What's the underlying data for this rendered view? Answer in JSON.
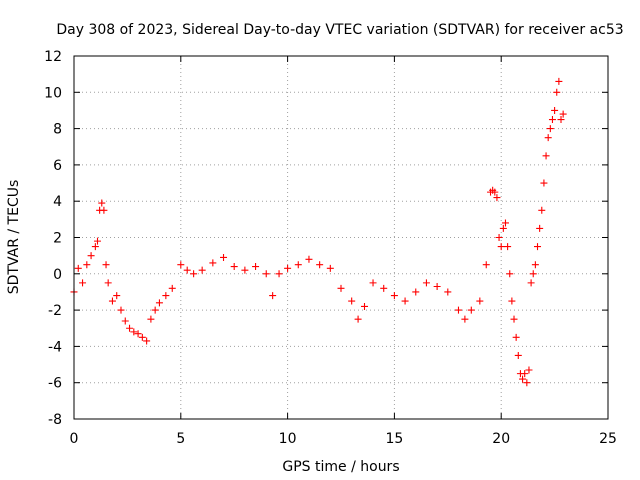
{
  "chart_data": {
    "type": "scatter",
    "title": "Day 308 of 2023, Sidereal Day-to-day VTEC variation (SDTVAR) for receiver ac53",
    "xlabel": "GPS time / hours",
    "ylabel": "SDTVAR / TECUs",
    "xlim": [
      0,
      25
    ],
    "ylim": [
      -8,
      12
    ],
    "xticks": [
      0,
      5,
      10,
      15,
      20,
      25
    ],
    "yticks": [
      -8,
      -6,
      -4,
      -2,
      0,
      2,
      4,
      6,
      8,
      10,
      12
    ],
    "xtick_labels": [
      "0",
      "5",
      "10",
      "15",
      "20",
      "25"
    ],
    "ytick_labels": [
      "-8",
      "-6",
      "-4",
      "-2",
      "0",
      "2",
      "4",
      "6",
      "8",
      "10",
      "12"
    ],
    "grid": true,
    "marker": "+",
    "series": [
      {
        "name": "SDTVAR",
        "color": "#ff0000",
        "x": [
          0.0,
          0.2,
          0.4,
          0.6,
          0.8,
          1.0,
          1.1,
          1.2,
          1.3,
          1.4,
          1.5,
          1.6,
          1.8,
          2.0,
          2.2,
          2.4,
          2.6,
          2.8,
          3.0,
          3.2,
          3.4,
          3.6,
          3.8,
          4.0,
          4.3,
          4.6,
          5.0,
          5.3,
          5.6,
          6.0,
          6.5,
          7.0,
          7.5,
          8.0,
          8.5,
          9.0,
          9.3,
          9.6,
          10.0,
          10.5,
          11.0,
          11.5,
          12.0,
          12.5,
          13.0,
          13.3,
          13.6,
          14.0,
          14.5,
          15.0,
          15.5,
          16.0,
          16.5,
          17.0,
          17.5,
          18.0,
          18.3,
          18.6,
          19.0,
          19.3,
          19.5,
          19.6,
          19.7,
          19.8,
          19.9,
          20.0,
          20.1,
          20.2,
          20.3,
          20.4,
          20.5,
          20.6,
          20.7,
          20.8,
          20.9,
          21.0,
          21.1,
          21.2,
          21.3,
          21.4,
          21.5,
          21.6,
          21.7,
          21.8,
          21.9,
          22.0,
          22.1,
          22.2,
          22.3,
          22.4,
          22.5,
          22.6,
          22.7,
          22.8,
          22.9
        ],
        "y": [
          -1.0,
          0.3,
          -0.5,
          0.5,
          1.0,
          1.5,
          1.8,
          3.5,
          3.9,
          3.5,
          0.5,
          -0.5,
          -1.5,
          -1.2,
          -2.0,
          -2.6,
          -3.0,
          -3.2,
          -3.3,
          -3.5,
          -3.7,
          -2.5,
          -2.0,
          -1.6,
          -1.2,
          -0.8,
          0.5,
          0.2,
          0.0,
          0.2,
          0.6,
          0.9,
          0.4,
          0.2,
          0.4,
          0.0,
          -1.2,
          0.0,
          0.3,
          0.5,
          0.8,
          0.5,
          0.3,
          -0.8,
          -1.5,
          -2.5,
          -1.8,
          -0.5,
          -0.8,
          -1.2,
          -1.5,
          -1.0,
          -0.5,
          -0.7,
          -1.0,
          -2.0,
          -2.5,
          -2.0,
          -1.5,
          0.5,
          4.5,
          4.6,
          4.5,
          4.2,
          2.0,
          1.5,
          2.5,
          2.8,
          1.5,
          0.0,
          -1.5,
          -2.5,
          -3.5,
          -4.5,
          -5.5,
          -5.8,
          -5.5,
          -6.0,
          -5.3,
          -0.5,
          0.0,
          0.5,
          1.5,
          2.5,
          3.5,
          5.0,
          6.5,
          7.5,
          8.0,
          8.5,
          9.0,
          10.0,
          10.6,
          8.5,
          8.8
        ]
      }
    ]
  }
}
